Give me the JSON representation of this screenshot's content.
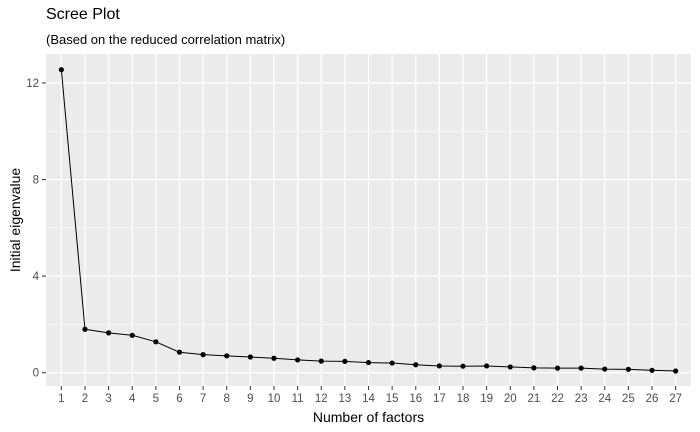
{
  "chart_data": {
    "type": "line",
    "title": "Scree Plot",
    "subtitle": "(Based on the reduced correlation matrix)",
    "xlabel": "Number of factors",
    "ylabel": "Initial eigenvalue",
    "x": [
      1,
      2,
      3,
      4,
      5,
      6,
      7,
      8,
      9,
      10,
      11,
      12,
      13,
      14,
      15,
      16,
      17,
      18,
      19,
      20,
      21,
      22,
      23,
      24,
      25,
      26,
      27
    ],
    "values": [
      12.55,
      1.8,
      1.65,
      1.55,
      1.28,
      0.85,
      0.75,
      0.7,
      0.65,
      0.6,
      0.53,
      0.48,
      0.47,
      0.42,
      0.4,
      0.33,
      0.28,
      0.27,
      0.28,
      0.24,
      0.2,
      0.19,
      0.19,
      0.15,
      0.14,
      0.1,
      0.07
    ],
    "yticks": [
      0,
      4,
      8,
      12
    ],
    "ylim": [
      -0.55,
      13.2
    ],
    "xlim": [
      0.35,
      27.65
    ],
    "grid": true,
    "colors": {
      "panel": "#ebebeb",
      "grid": "#ffffff",
      "line": "#000000",
      "point": "#000000"
    }
  }
}
